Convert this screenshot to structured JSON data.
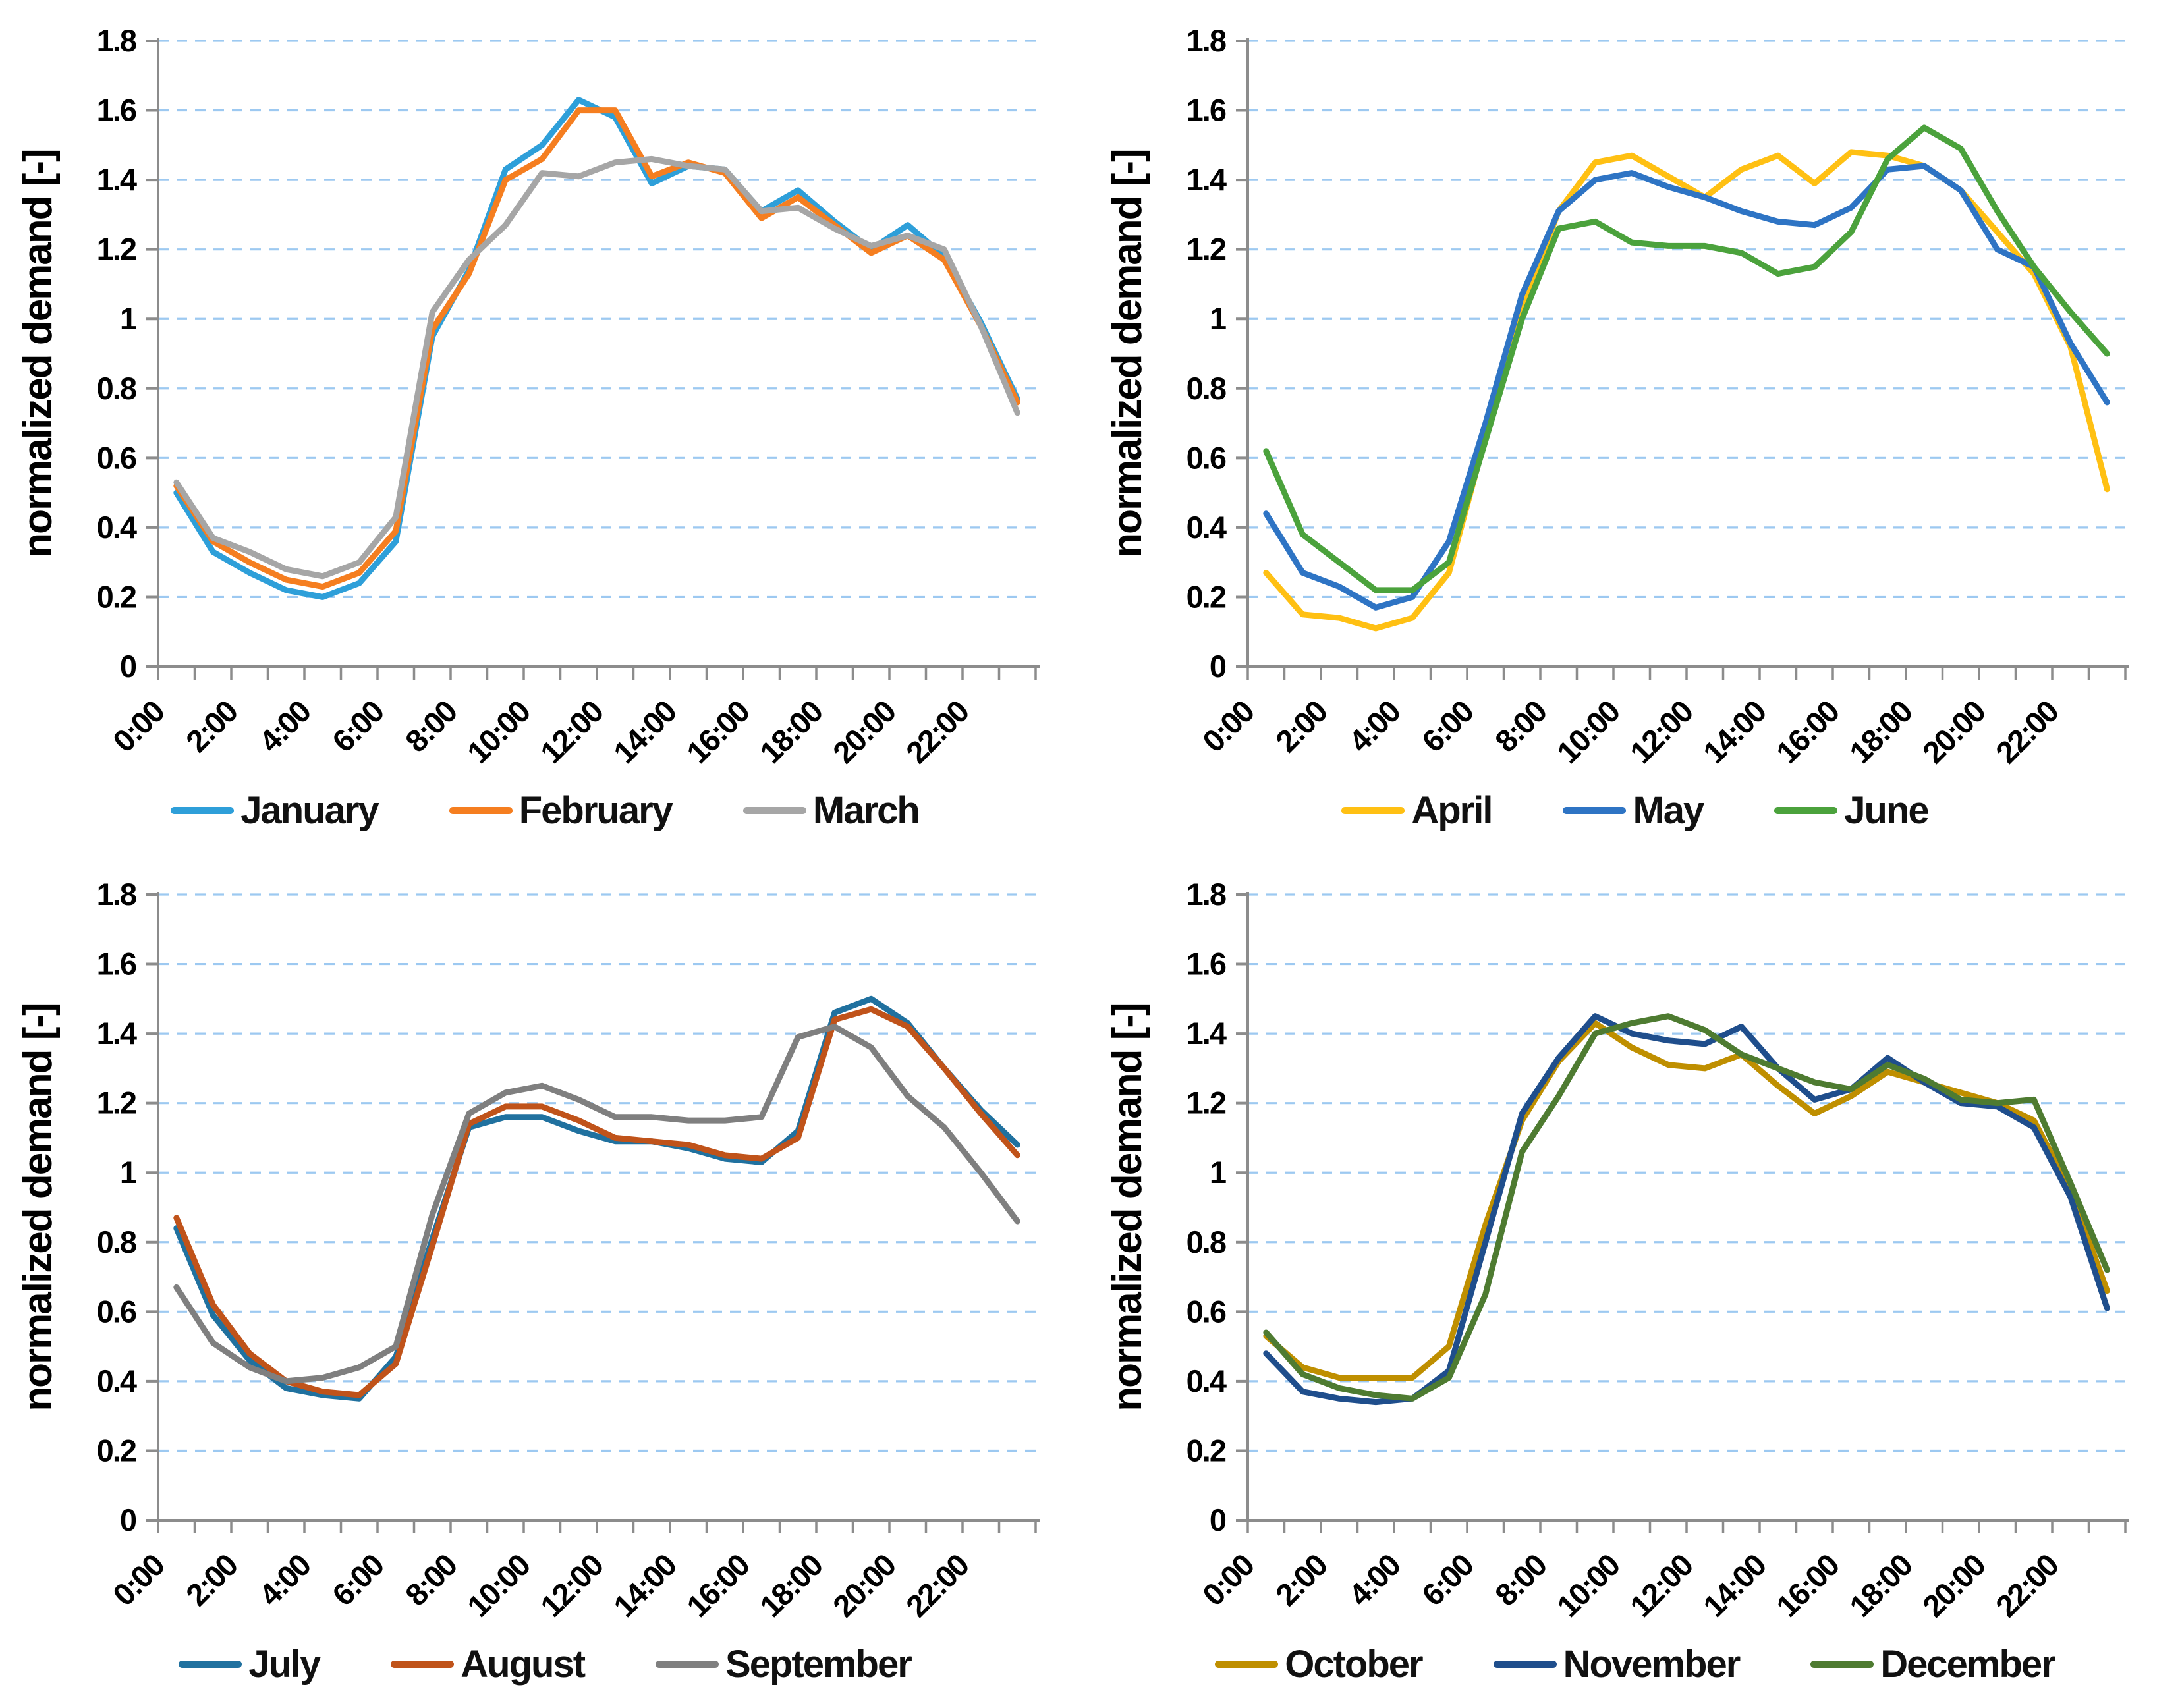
{
  "figure": {
    "description": "Four line charts of hourly normalized electricity demand profiles, one panel per quarter of the year",
    "layout": "2x2 grid of identical line charts",
    "background": "#FFFFFF"
  },
  "chart_defaults": {
    "ylabel": "normalized demand [-]",
    "ylim": [
      0,
      1.8
    ],
    "ytick_step": 0.2,
    "ytick_labels": [
      "0",
      "0.2",
      "0.4",
      "0.6",
      "0.8",
      "1",
      "1.2",
      "1.4",
      "1.6",
      "1.8"
    ],
    "grid": "horizontal dashed lines",
    "grid_color": "#9DC9F1",
    "axis_color": "#8C8C8C",
    "text_color": "#000000",
    "legend_position": "bottom-center",
    "x_tick_every": 2
  },
  "chart_data": [
    {
      "type": "line",
      "position": "top-left",
      "ylabel": "normalized demand [-]",
      "ylim": [
        0,
        1.8
      ],
      "x": [
        "0:00",
        "1:00",
        "2:00",
        "3:00",
        "4:00",
        "5:00",
        "6:00",
        "7:00",
        "8:00",
        "9:00",
        "10:00",
        "11:00",
        "12:00",
        "13:00",
        "14:00",
        "15:00",
        "16:00",
        "17:00",
        "18:00",
        "19:00",
        "20:00",
        "21:00",
        "22:00",
        "23:00"
      ],
      "x_tick_labels": [
        "0:00",
        "2:00",
        "4:00",
        "6:00",
        "8:00",
        "10:00",
        "12:00",
        "14:00",
        "16:00",
        "18:00",
        "20:00",
        "22:00"
      ],
      "series": [
        {
          "name": "January",
          "color": "#2E9FD9",
          "values": [
            0.5,
            0.33,
            0.27,
            0.22,
            0.2,
            0.24,
            0.36,
            0.95,
            1.14,
            1.43,
            1.5,
            1.63,
            1.58,
            1.39,
            1.44,
            1.43,
            1.31,
            1.37,
            1.28,
            1.2,
            1.27,
            1.18,
            0.99,
            0.77
          ]
        },
        {
          "name": "February",
          "color": "#F57E20",
          "values": [
            0.52,
            0.36,
            0.3,
            0.25,
            0.23,
            0.27,
            0.39,
            0.97,
            1.13,
            1.4,
            1.46,
            1.6,
            1.6,
            1.41,
            1.45,
            1.42,
            1.29,
            1.35,
            1.27,
            1.19,
            1.24,
            1.17,
            0.98,
            0.76
          ]
        },
        {
          "name": "March",
          "color": "#A6A6A6",
          "values": [
            0.53,
            0.37,
            0.33,
            0.28,
            0.26,
            0.3,
            0.43,
            1.02,
            1.17,
            1.27,
            1.42,
            1.41,
            1.45,
            1.46,
            1.44,
            1.43,
            1.31,
            1.32,
            1.26,
            1.21,
            1.24,
            1.2,
            0.98,
            0.73
          ]
        }
      ]
    },
    {
      "type": "line",
      "position": "top-right",
      "ylabel": "normalized demand [-]",
      "ylim": [
        0,
        1.8
      ],
      "x": [
        "0:00",
        "1:00",
        "2:00",
        "3:00",
        "4:00",
        "5:00",
        "6:00",
        "7:00",
        "8:00",
        "9:00",
        "10:00",
        "11:00",
        "12:00",
        "13:00",
        "14:00",
        "15:00",
        "16:00",
        "17:00",
        "18:00",
        "19:00",
        "20:00",
        "21:00",
        "22:00",
        "23:00"
      ],
      "x_tick_labels": [
        "0:00",
        "2:00",
        "4:00",
        "6:00",
        "8:00",
        "10:00",
        "12:00",
        "14:00",
        "16:00",
        "18:00",
        "20:00",
        "22:00"
      ],
      "series": [
        {
          "name": "April",
          "color": "#FFC013",
          "values": [
            0.27,
            0.15,
            0.14,
            0.11,
            0.14,
            0.27,
            0.66,
            1.03,
            1.31,
            1.45,
            1.47,
            1.41,
            1.35,
            1.43,
            1.47,
            1.39,
            1.48,
            1.47,
            1.44,
            1.37,
            1.25,
            1.13,
            0.92,
            0.51
          ]
        },
        {
          "name": "May",
          "color": "#2E74C4",
          "values": [
            0.44,
            0.27,
            0.23,
            0.17,
            0.2,
            0.36,
            0.7,
            1.07,
            1.31,
            1.4,
            1.42,
            1.38,
            1.35,
            1.31,
            1.28,
            1.27,
            1.32,
            1.43,
            1.44,
            1.37,
            1.2,
            1.15,
            0.93,
            0.76
          ]
        },
        {
          "name": "June",
          "color": "#4BA23C",
          "values": [
            0.62,
            0.38,
            0.3,
            0.22,
            0.22,
            0.3,
            0.65,
            1.0,
            1.26,
            1.28,
            1.22,
            1.21,
            1.21,
            1.19,
            1.13,
            1.15,
            1.25,
            1.46,
            1.55,
            1.49,
            1.31,
            1.15,
            1.02,
            0.9
          ]
        }
      ]
    },
    {
      "type": "line",
      "position": "bottom-left",
      "ylabel": "normalized demand [-]",
      "ylim": [
        0,
        1.8
      ],
      "x": [
        "0:00",
        "1:00",
        "2:00",
        "3:00",
        "4:00",
        "5:00",
        "6:00",
        "7:00",
        "8:00",
        "9:00",
        "10:00",
        "11:00",
        "12:00",
        "13:00",
        "14:00",
        "15:00",
        "16:00",
        "17:00",
        "18:00",
        "19:00",
        "20:00",
        "21:00",
        "22:00",
        "23:00"
      ],
      "x_tick_labels": [
        "0:00",
        "2:00",
        "4:00",
        "6:00",
        "8:00",
        "10:00",
        "12:00",
        "14:00",
        "16:00",
        "18:00",
        "20:00",
        "22:00"
      ],
      "series": [
        {
          "name": "July",
          "color": "#20719F",
          "values": [
            0.84,
            0.59,
            0.46,
            0.38,
            0.36,
            0.35,
            0.47,
            0.81,
            1.13,
            1.16,
            1.16,
            1.12,
            1.09,
            1.09,
            1.07,
            1.04,
            1.03,
            1.12,
            1.46,
            1.5,
            1.43,
            1.3,
            1.18,
            1.08
          ]
        },
        {
          "name": "August",
          "color": "#C0531A",
          "values": [
            0.87,
            0.62,
            0.48,
            0.4,
            0.37,
            0.36,
            0.45,
            0.79,
            1.14,
            1.19,
            1.19,
            1.15,
            1.1,
            1.09,
            1.08,
            1.05,
            1.04,
            1.1,
            1.44,
            1.47,
            1.42,
            1.3,
            1.17,
            1.05
          ]
        },
        {
          "name": "September",
          "color": "#7F7F7F",
          "values": [
            0.67,
            0.51,
            0.44,
            0.4,
            0.41,
            0.44,
            0.5,
            0.88,
            1.17,
            1.23,
            1.25,
            1.21,
            1.16,
            1.16,
            1.15,
            1.15,
            1.16,
            1.39,
            1.42,
            1.36,
            1.22,
            1.13,
            1.0,
            0.86
          ]
        }
      ]
    },
    {
      "type": "line",
      "position": "bottom-right",
      "ylabel": "normalized demand [-]",
      "ylim": [
        0,
        1.8
      ],
      "x": [
        "0:00",
        "1:00",
        "2:00",
        "3:00",
        "4:00",
        "5:00",
        "6:00",
        "7:00",
        "8:00",
        "9:00",
        "10:00",
        "11:00",
        "12:00",
        "13:00",
        "14:00",
        "15:00",
        "16:00",
        "17:00",
        "18:00",
        "19:00",
        "20:00",
        "21:00",
        "22:00",
        "23:00"
      ],
      "x_tick_labels": [
        "0:00",
        "2:00",
        "4:00",
        "6:00",
        "8:00",
        "10:00",
        "12:00",
        "14:00",
        "16:00",
        "18:00",
        "20:00",
        "22:00"
      ],
      "series": [
        {
          "name": "October",
          "color": "#BF8F00",
          "values": [
            0.53,
            0.44,
            0.41,
            0.41,
            0.41,
            0.5,
            0.85,
            1.15,
            1.32,
            1.43,
            1.36,
            1.31,
            1.3,
            1.34,
            1.25,
            1.17,
            1.22,
            1.29,
            1.26,
            1.23,
            1.2,
            1.15,
            0.95,
            0.66
          ]
        },
        {
          "name": "November",
          "color": "#1F4E8C",
          "values": [
            0.48,
            0.37,
            0.35,
            0.34,
            0.35,
            0.43,
            0.8,
            1.17,
            1.33,
            1.45,
            1.4,
            1.38,
            1.37,
            1.42,
            1.3,
            1.21,
            1.24,
            1.33,
            1.26,
            1.2,
            1.19,
            1.13,
            0.93,
            0.61
          ]
        },
        {
          "name": "December",
          "color": "#4E7B31",
          "values": [
            0.54,
            0.42,
            0.38,
            0.36,
            0.35,
            0.41,
            0.65,
            1.06,
            1.22,
            1.4,
            1.43,
            1.45,
            1.41,
            1.34,
            1.3,
            1.26,
            1.24,
            1.31,
            1.27,
            1.21,
            1.2,
            1.21,
            0.97,
            0.72
          ]
        }
      ]
    }
  ]
}
